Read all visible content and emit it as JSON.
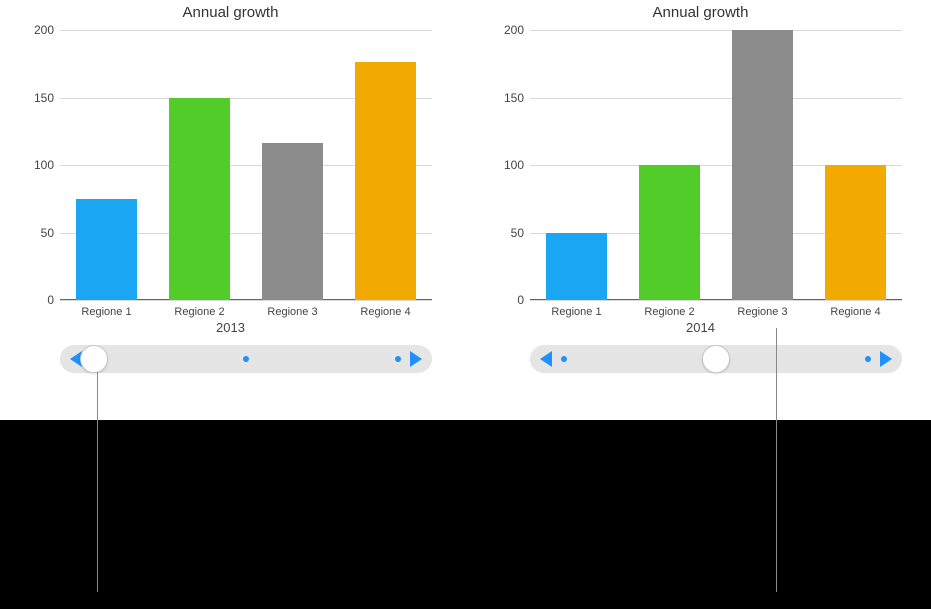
{
  "charts": [
    {
      "title": "Annual growth",
      "type": "bar",
      "year_label": "2013",
      "categories": [
        "Regione 1",
        "Regione 2",
        "Regione 3",
        "Regione 4"
      ],
      "values": [
        75,
        150,
        116,
        176
      ],
      "bar_colors": [
        "#1aa6f2",
        "#52cc29",
        "#8c8c8c",
        "#f2a900"
      ],
      "ylim": [
        0,
        200
      ],
      "ytick_step": 50,
      "y_ticks": [
        0,
        50,
        100,
        150,
        200
      ],
      "grid_color": "#d9d9d9",
      "axis_color": "#666666",
      "background_color": "#ffffff",
      "title_fontsize": 15,
      "label_fontsize": 11,
      "tick_fontsize": 12,
      "bar_width": 0.65,
      "slider": {
        "positions": 3,
        "active_index": 0,
        "dot_color": "#1e90ff",
        "knob_color": "#ffffff",
        "track_color": "#e5e5e6",
        "arrow_color": "#1e90ff"
      }
    },
    {
      "title": "Annual growth",
      "type": "bar",
      "year_label": "2014",
      "categories": [
        "Regione 1",
        "Regione 2",
        "Regione 3",
        "Regione 4"
      ],
      "values": [
        50,
        100,
        200,
        100
      ],
      "bar_colors": [
        "#1aa6f2",
        "#52cc29",
        "#8c8c8c",
        "#f2a900"
      ],
      "ylim": [
        0,
        200
      ],
      "ytick_step": 50,
      "y_ticks": [
        0,
        50,
        100,
        150,
        200
      ],
      "grid_color": "#d9d9d9",
      "axis_color": "#666666",
      "background_color": "#ffffff",
      "title_fontsize": 15,
      "label_fontsize": 11,
      "tick_fontsize": 12,
      "bar_width": 0.65,
      "slider": {
        "positions": 3,
        "active_index": 1,
        "dot_color": "#1e90ff",
        "knob_color": "#ffffff",
        "track_color": "#e5e5e6",
        "arrow_color": "#1e90ff"
      }
    }
  ]
}
